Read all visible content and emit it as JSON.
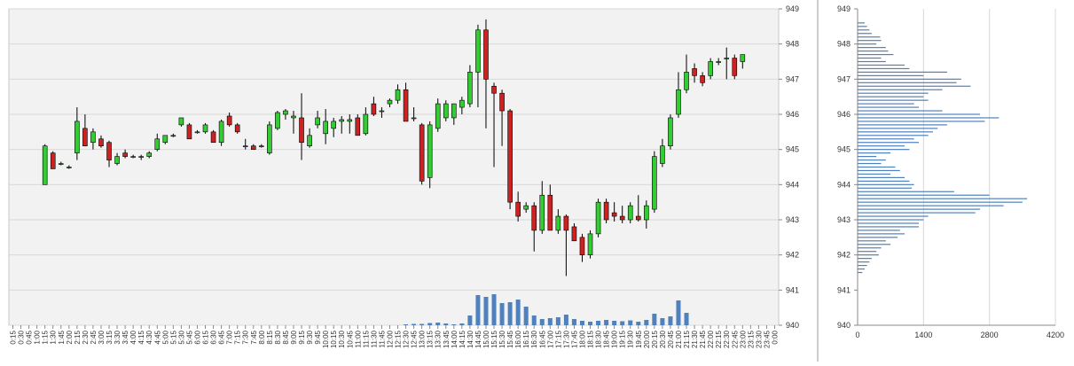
{
  "chart_data": [
    {
      "type": "candlestick",
      "title": "",
      "xlabel": "",
      "ylabel": "",
      "ylim": [
        940,
        949
      ],
      "y_ticks": [
        "940",
        "941",
        "942",
        "943",
        "944",
        "945",
        "946",
        "947",
        "948",
        "949"
      ],
      "grid": true,
      "colors": {
        "up": "#33cc33",
        "down": "#cc2222",
        "volume": "#4f81bd",
        "plot_bg": "#f2f2f2",
        "grid": "#d8d8d8"
      },
      "x_tick_labels": [
        "0:15",
        "0:30",
        "0:45",
        "1:00",
        "1:15",
        "1:30",
        "1:45",
        "2:00",
        "2:15",
        "2:30",
        "2:45",
        "3:00",
        "3:15",
        "3:30",
        "3:45",
        "4:00",
        "4:15",
        "4:30",
        "4:45",
        "5:00",
        "5:15",
        "5:30",
        "5:45",
        "6:00",
        "6:15",
        "6:30",
        "6:45",
        "7:00",
        "7:15",
        "7:30",
        "7:45",
        "8:00",
        "8:15",
        "8:30",
        "8:45",
        "9:00",
        "9:15",
        "9:30",
        "9:45",
        "10:00",
        "10:15",
        "10:30",
        "10:45",
        "11:00",
        "11:15",
        "11:30",
        "11:45",
        "12:00",
        "12:15",
        "12:30",
        "12:45",
        "13:00",
        "13:15",
        "13:30",
        "13:45",
        "14:00",
        "14:15",
        "14:30",
        "14:45",
        "15:00",
        "15:15",
        "15:30",
        "15:45",
        "16:00",
        "16:15",
        "16:30",
        "16:45",
        "17:00",
        "17:15",
        "17:30",
        "17:45",
        "18:00",
        "18:15",
        "18:30",
        "18:45",
        "19:00",
        "19:15",
        "19:30",
        "19:45",
        "20:00",
        "20:15",
        "20:30",
        "20:45",
        "21:00",
        "21:15",
        "21:30",
        "21:45",
        "22:00",
        "22:15",
        "22:30",
        "22:45",
        "23:00",
        "23:15",
        "23:30",
        "23:45",
        "0:00"
      ],
      "candles": [
        {
          "x": "1:15",
          "o": 944.0,
          "h": 945.15,
          "l": 944.0,
          "c": 945.1
        },
        {
          "x": "1:30",
          "o": 944.9,
          "h": 944.95,
          "l": 944.45,
          "c": 944.45
        },
        {
          "x": "1:45",
          "o": 944.6,
          "h": 944.65,
          "l": 944.55,
          "c": 944.6
        },
        {
          "x": "2:00",
          "o": 944.5,
          "h": 944.55,
          "l": 944.45,
          "c": 944.5
        },
        {
          "x": "2:15",
          "o": 944.9,
          "h": 946.2,
          "l": 944.7,
          "c": 945.8
        },
        {
          "x": "2:30",
          "o": 945.6,
          "h": 946.0,
          "l": 945.1,
          "c": 945.1
        },
        {
          "x": "2:45",
          "o": 945.2,
          "h": 945.6,
          "l": 945.0,
          "c": 945.5
        },
        {
          "x": "3:00",
          "o": 945.3,
          "h": 945.4,
          "l": 945.05,
          "c": 945.1
        },
        {
          "x": "3:15",
          "o": 945.2,
          "h": 945.25,
          "l": 944.5,
          "c": 944.7
        },
        {
          "x": "3:30",
          "o": 944.6,
          "h": 944.9,
          "l": 944.55,
          "c": 944.8
        },
        {
          "x": "3:45",
          "o": 944.9,
          "h": 945.0,
          "l": 944.75,
          "c": 944.8
        },
        {
          "x": "4:00",
          "o": 944.8,
          "h": 944.85,
          "l": 944.75,
          "c": 944.8
        },
        {
          "x": "4:15",
          "o": 944.8,
          "h": 944.85,
          "l": 944.7,
          "c": 944.8
        },
        {
          "x": "4:30",
          "o": 944.8,
          "h": 944.95,
          "l": 944.75,
          "c": 944.9
        },
        {
          "x": "4:45",
          "o": 945.0,
          "h": 945.45,
          "l": 944.95,
          "c": 945.3
        },
        {
          "x": "5:00",
          "o": 945.2,
          "h": 945.4,
          "l": 945.15,
          "c": 945.4
        },
        {
          "x": "5:15",
          "o": 945.4,
          "h": 945.45,
          "l": 945.35,
          "c": 945.4
        },
        {
          "x": "5:30",
          "o": 945.7,
          "h": 945.9,
          "l": 945.65,
          "c": 945.9
        },
        {
          "x": "5:45",
          "o": 945.7,
          "h": 945.75,
          "l": 945.3,
          "c": 945.3
        },
        {
          "x": "6:00",
          "o": 945.5,
          "h": 945.55,
          "l": 945.45,
          "c": 945.5
        },
        {
          "x": "6:15",
          "o": 945.5,
          "h": 945.75,
          "l": 945.45,
          "c": 945.7
        },
        {
          "x": "6:30",
          "o": 945.5,
          "h": 945.55,
          "l": 945.2,
          "c": 945.2
        },
        {
          "x": "6:45",
          "o": 945.2,
          "h": 945.85,
          "l": 945.1,
          "c": 945.8
        },
        {
          "x": "7:00",
          "o": 945.95,
          "h": 946.05,
          "l": 945.65,
          "c": 945.7
        },
        {
          "x": "7:15",
          "o": 945.7,
          "h": 945.75,
          "l": 945.45,
          "c": 945.5
        },
        {
          "x": "7:30",
          "o": 945.1,
          "h": 945.3,
          "l": 945.0,
          "c": 945.1
        },
        {
          "x": "7:45",
          "o": 945.1,
          "h": 945.15,
          "l": 945.0,
          "c": 945.0
        },
        {
          "x": "8:00",
          "o": 945.1,
          "h": 945.15,
          "l": 945.05,
          "c": 945.1
        },
        {
          "x": "8:15",
          "o": 944.9,
          "h": 945.8,
          "l": 944.85,
          "c": 945.7
        },
        {
          "x": "8:30",
          "o": 945.6,
          "h": 946.1,
          "l": 945.55,
          "c": 946.05
        },
        {
          "x": "8:45",
          "o": 946.0,
          "h": 946.15,
          "l": 945.85,
          "c": 946.1
        },
        {
          "x": "9:00",
          "o": 945.9,
          "h": 946.1,
          "l": 945.45,
          "c": 945.95
        },
        {
          "x": "9:15",
          "o": 945.9,
          "h": 946.6,
          "l": 944.7,
          "c": 945.2
        },
        {
          "x": "9:30",
          "o": 945.1,
          "h": 945.6,
          "l": 945.05,
          "c": 945.4
        },
        {
          "x": "9:45",
          "o": 945.7,
          "h": 946.1,
          "l": 945.6,
          "c": 945.9
        },
        {
          "x": "10:00",
          "o": 945.45,
          "h": 946.15,
          "l": 945.15,
          "c": 945.8
        },
        {
          "x": "10:15",
          "o": 945.6,
          "h": 945.9,
          "l": 945.35,
          "c": 945.8
        },
        {
          "x": "10:30",
          "o": 945.8,
          "h": 945.95,
          "l": 945.45,
          "c": 945.85
        },
        {
          "x": "10:45",
          "o": 945.8,
          "h": 946.0,
          "l": 945.45,
          "c": 945.85
        },
        {
          "x": "11:00",
          "o": 945.9,
          "h": 946.0,
          "l": 945.4,
          "c": 945.4
        },
        {
          "x": "11:15",
          "o": 945.45,
          "h": 946.2,
          "l": 945.4,
          "c": 946.0
        },
        {
          "x": "11:30",
          "o": 946.3,
          "h": 946.5,
          "l": 945.95,
          "c": 946.0
        },
        {
          "x": "11:45",
          "o": 946.1,
          "h": 946.2,
          "l": 945.9,
          "c": 946.1
        },
        {
          "x": "12:00",
          "o": 946.3,
          "h": 946.45,
          "l": 946.2,
          "c": 946.4
        },
        {
          "x": "12:15",
          "o": 946.4,
          "h": 946.85,
          "l": 946.3,
          "c": 946.7
        },
        {
          "x": "12:30",
          "o": 946.7,
          "h": 946.9,
          "l": 945.85,
          "c": 945.8
        },
        {
          "x": "12:45",
          "o": 945.9,
          "h": 946.2,
          "l": 945.8,
          "c": 945.9
        },
        {
          "x": "13:00",
          "o": 945.7,
          "h": 945.75,
          "l": 944.0,
          "c": 944.1
        },
        {
          "x": "13:15",
          "o": 944.2,
          "h": 945.8,
          "l": 943.9,
          "c": 945.7
        },
        {
          "x": "13:30",
          "o": 945.6,
          "h": 946.45,
          "l": 945.5,
          "c": 946.3
        },
        {
          "x": "13:45",
          "o": 945.9,
          "h": 946.4,
          "l": 945.8,
          "c": 946.3
        },
        {
          "x": "14:00",
          "o": 945.9,
          "h": 946.3,
          "l": 945.7,
          "c": 946.3
        },
        {
          "x": "14:15",
          "o": 946.2,
          "h": 946.5,
          "l": 946.0,
          "c": 946.4
        },
        {
          "x": "14:30",
          "o": 946.3,
          "h": 947.4,
          "l": 946.2,
          "c": 947.2
        },
        {
          "x": "14:45",
          "o": 947.2,
          "h": 948.55,
          "l": 946.2,
          "c": 948.4
        },
        {
          "x": "15:00",
          "o": 948.4,
          "h": 948.7,
          "l": 945.6,
          "c": 947.0
        },
        {
          "x": "15:15",
          "o": 946.8,
          "h": 946.9,
          "l": 944.5,
          "c": 946.6
        },
        {
          "x": "15:30",
          "o": 946.6,
          "h": 946.7,
          "l": 945.1,
          "c": 946.1
        },
        {
          "x": "15:45",
          "o": 946.1,
          "h": 946.15,
          "l": 943.3,
          "c": 943.5
        },
        {
          "x": "16:00",
          "o": 943.5,
          "h": 943.8,
          "l": 942.95,
          "c": 943.1
        },
        {
          "x": "16:15",
          "o": 943.3,
          "h": 943.5,
          "l": 943.2,
          "c": 943.4
        },
        {
          "x": "16:30",
          "o": 943.4,
          "h": 943.5,
          "l": 942.1,
          "c": 942.7
        },
        {
          "x": "16:45",
          "o": 942.7,
          "h": 944.1,
          "l": 942.6,
          "c": 943.7
        },
        {
          "x": "17:00",
          "o": 943.7,
          "h": 944.0,
          "l": 942.7,
          "c": 942.7
        },
        {
          "x": "17:15",
          "o": 942.7,
          "h": 943.3,
          "l": 942.6,
          "c": 943.1
        },
        {
          "x": "17:30",
          "o": 943.1,
          "h": 943.15,
          "l": 941.4,
          "c": 942.7
        },
        {
          "x": "17:45",
          "o": 942.8,
          "h": 942.9,
          "l": 942.4,
          "c": 942.4
        },
        {
          "x": "18:00",
          "o": 942.5,
          "h": 942.6,
          "l": 941.8,
          "c": 942.0
        },
        {
          "x": "18:15",
          "o": 942.0,
          "h": 942.7,
          "l": 941.9,
          "c": 942.6
        },
        {
          "x": "18:30",
          "o": 942.6,
          "h": 943.6,
          "l": 942.5,
          "c": 943.5
        },
        {
          "x": "18:45",
          "o": 943.5,
          "h": 943.6,
          "l": 942.9,
          "c": 943.0
        },
        {
          "x": "19:00",
          "o": 943.2,
          "h": 943.5,
          "l": 942.95,
          "c": 943.1
        },
        {
          "x": "19:15",
          "o": 943.1,
          "h": 943.4,
          "l": 942.9,
          "c": 943.0
        },
        {
          "x": "19:30",
          "o": 943.0,
          "h": 943.5,
          "l": 942.9,
          "c": 943.4
        },
        {
          "x": "19:45",
          "o": 943.1,
          "h": 943.7,
          "l": 942.95,
          "c": 943.0
        },
        {
          "x": "20:00",
          "o": 943.0,
          "h": 943.55,
          "l": 942.75,
          "c": 943.4
        },
        {
          "x": "20:15",
          "o": 943.3,
          "h": 944.95,
          "l": 943.2,
          "c": 944.8
        },
        {
          "x": "20:30",
          "o": 944.6,
          "h": 945.3,
          "l": 944.5,
          "c": 945.1
        },
        {
          "x": "20:45",
          "o": 945.1,
          "h": 946.0,
          "l": 945.0,
          "c": 945.9
        },
        {
          "x": "21:00",
          "o": 946.0,
          "h": 947.2,
          "l": 945.9,
          "c": 946.7
        },
        {
          "x": "21:15",
          "o": 946.7,
          "h": 947.7,
          "l": 946.6,
          "c": 947.2
        },
        {
          "x": "21:30",
          "o": 947.3,
          "h": 947.45,
          "l": 946.9,
          "c": 947.1
        },
        {
          "x": "21:45",
          "o": 947.1,
          "h": 947.2,
          "l": 946.8,
          "c": 946.9
        },
        {
          "x": "22:00",
          "o": 947.1,
          "h": 947.6,
          "l": 947.0,
          "c": 947.5
        },
        {
          "x": "22:15",
          "o": 947.5,
          "h": 947.6,
          "l": 947.4,
          "c": 947.5
        },
        {
          "x": "22:30",
          "o": 947.6,
          "h": 947.9,
          "l": 947.0,
          "c": 947.6
        },
        {
          "x": "22:45",
          "o": 947.6,
          "h": 947.7,
          "l": 947.0,
          "c": 947.1
        },
        {
          "x": "23:00",
          "o": 947.5,
          "h": 947.7,
          "l": 947.3,
          "c": 947.7
        }
      ],
      "volume": {
        "x": [
          "12:30",
          "12:45",
          "13:00",
          "13:15",
          "13:30",
          "13:45",
          "14:00",
          "14:15",
          "14:30",
          "14:45",
          "15:00",
          "15:15",
          "15:30",
          "15:45",
          "16:00",
          "16:15",
          "16:30",
          "16:45",
          "17:00",
          "17:15",
          "17:30",
          "17:45",
          "18:00",
          "18:15",
          "18:30",
          "18:45",
          "19:00",
          "19:15",
          "19:30",
          "19:45",
          "20:00",
          "20:15",
          "20:30",
          "20:45",
          "21:00",
          "21:15"
        ],
        "values": [
          2,
          3,
          3,
          5,
          6,
          4,
          2,
          4,
          22,
          68,
          64,
          70,
          50,
          52,
          58,
          42,
          22,
          14,
          16,
          18,
          24,
          14,
          10,
          8,
          10,
          12,
          10,
          9,
          11,
          8,
          12,
          26,
          16,
          20,
          56,
          28
        ]
      }
    },
    {
      "type": "bar",
      "orientation": "horizontal",
      "title": "",
      "xlabel": "",
      "ylabel": "",
      "ylim": [
        940,
        949
      ],
      "xlim": [
        0,
        4200
      ],
      "x_ticks": [
        "0",
        "1400",
        "2800",
        "4200"
      ],
      "y_ticks": [
        "940",
        "941",
        "942",
        "943",
        "944",
        "945",
        "946",
        "947",
        "948",
        "949"
      ],
      "grid": true,
      "bar_color": "#4f81bd",
      "levels": [
        948.6,
        948.5,
        948.4,
        948.3,
        948.2,
        948.1,
        948.0,
        947.9,
        947.8,
        947.7,
        947.6,
        947.5,
        947.4,
        947.3,
        947.2,
        947.1,
        947.0,
        946.9,
        946.8,
        946.7,
        946.6,
        946.5,
        946.4,
        946.3,
        946.2,
        946.1,
        946.0,
        945.9,
        945.8,
        945.7,
        945.6,
        945.5,
        945.4,
        945.3,
        945.2,
        945.1,
        945.0,
        944.9,
        944.8,
        944.7,
        944.6,
        944.5,
        944.4,
        944.3,
        944.2,
        944.1,
        944.0,
        943.9,
        943.8,
        943.7,
        943.6,
        943.5,
        943.4,
        943.3,
        943.2,
        943.1,
        943.0,
        942.9,
        942.8,
        942.7,
        942.6,
        942.5,
        942.4,
        942.3,
        942.2,
        942.1,
        942.0,
        941.9,
        941.8,
        941.7,
        941.6,
        941.5
      ],
      "values": [
        150,
        200,
        250,
        300,
        480,
        500,
        400,
        600,
        650,
        760,
        500,
        600,
        1000,
        1100,
        1900,
        1400,
        2200,
        2100,
        2400,
        1800,
        1500,
        1400,
        1500,
        1200,
        1300,
        1800,
        2600,
        3000,
        2700,
        1900,
        1700,
        1600,
        1500,
        1200,
        1300,
        1000,
        1100,
        700,
        400,
        600,
        500,
        800,
        900,
        700,
        1000,
        1100,
        1200,
        1150,
        2050,
        2800,
        3600,
        3500,
        3100,
        2600,
        2500,
        1500,
        1400,
        1300,
        1300,
        900,
        1000,
        850,
        600,
        700,
        500,
        400,
        450,
        300,
        250,
        200,
        150,
        100
      ]
    }
  ]
}
